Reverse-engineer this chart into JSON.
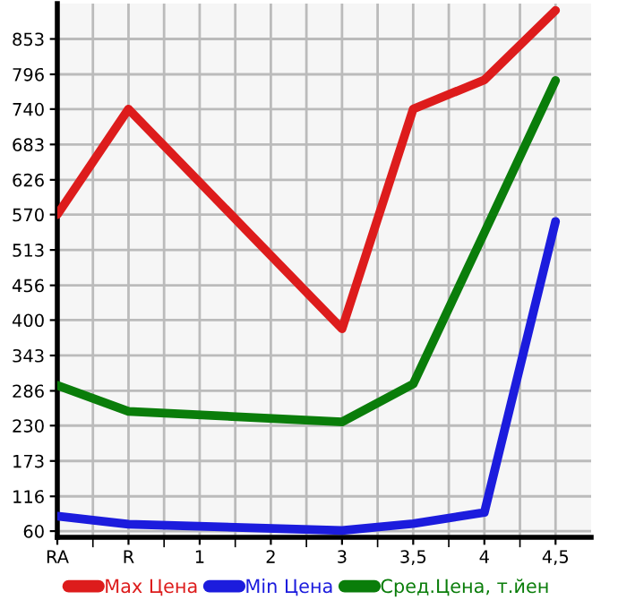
{
  "chart_data": {
    "type": "line",
    "categories": [
      "RA",
      "R",
      "1",
      "2",
      "3",
      "3,5",
      "4",
      "4,5"
    ],
    "series": [
      {
        "name": "Max Цена",
        "color": "#dd1c1c",
        "values": [
          570,
          740,
          null,
          null,
          386,
          740,
          787,
          899
        ]
      },
      {
        "name": "Min Цена",
        "color": "#1c1cdd",
        "values": [
          84,
          71,
          null,
          null,
          61,
          72,
          90,
          559
        ]
      },
      {
        "name": "Сред.Цена, т.йен",
        "color": "#0a7d0a",
        "values": [
          295,
          253,
          null,
          null,
          236,
          297,
          541,
          786
        ]
      }
    ],
    "ylim": [
      50,
      910
    ],
    "yticks": [
      60,
      116,
      173,
      230,
      286,
      343,
      400,
      456,
      513,
      570,
      626,
      683,
      740,
      796,
      853
    ],
    "grid": true,
    "legend": "bottom",
    "marker": "none",
    "line_style": "solid"
  }
}
